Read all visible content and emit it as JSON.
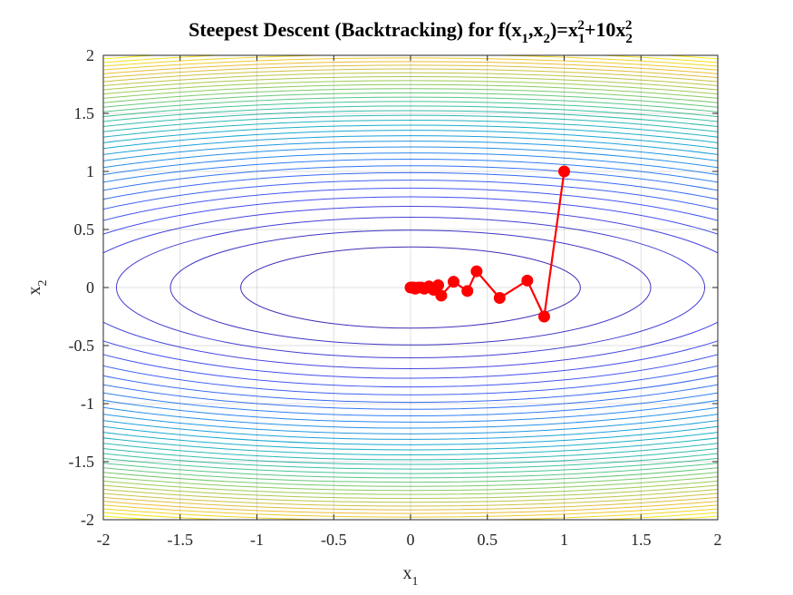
{
  "chart_data": {
    "type": "line",
    "title_parts": [
      "Steepest Descent (Backtracking) for f(x",
      "1",
      ",x",
      "2",
      ")=x",
      "1",
      "2",
      "+10x",
      "2",
      "2"
    ],
    "xlabel": "x",
    "xlabel_sub": "1",
    "ylabel": "x",
    "ylabel_sub": "2",
    "xlim": [
      -2,
      2
    ],
    "ylim": [
      -2,
      2
    ],
    "xticks": [
      "-2",
      "-1.5",
      "-1",
      "-0.5",
      "0",
      "0.5",
      "1",
      "1.5",
      "2"
    ],
    "yticks": [
      "-2",
      "-1.5",
      "-1",
      "-0.5",
      "0",
      "0.5",
      "1",
      "1.5",
      "2"
    ],
    "grid": true,
    "contour": {
      "function": "x1^2+10*x2^2",
      "colormap": "parula"
    },
    "series": [
      {
        "color": "#ff0000",
        "marker": "circle",
        "x": [
          1.0,
          0.87,
          0.76,
          0.58,
          0.43,
          0.37,
          0.28,
          0.2,
          0.18,
          0.15,
          0.12,
          0.09,
          0.07,
          0.05,
          0.03,
          0.02,
          0.01,
          0.0
        ],
        "y": [
          1.0,
          -0.25,
          0.06,
          -0.09,
          0.14,
          -0.03,
          0.05,
          -0.07,
          0.02,
          -0.02,
          0.01,
          -0.01,
          0.0,
          0.0,
          -0.01,
          0.0,
          0.0,
          0.0
        ]
      }
    ]
  }
}
